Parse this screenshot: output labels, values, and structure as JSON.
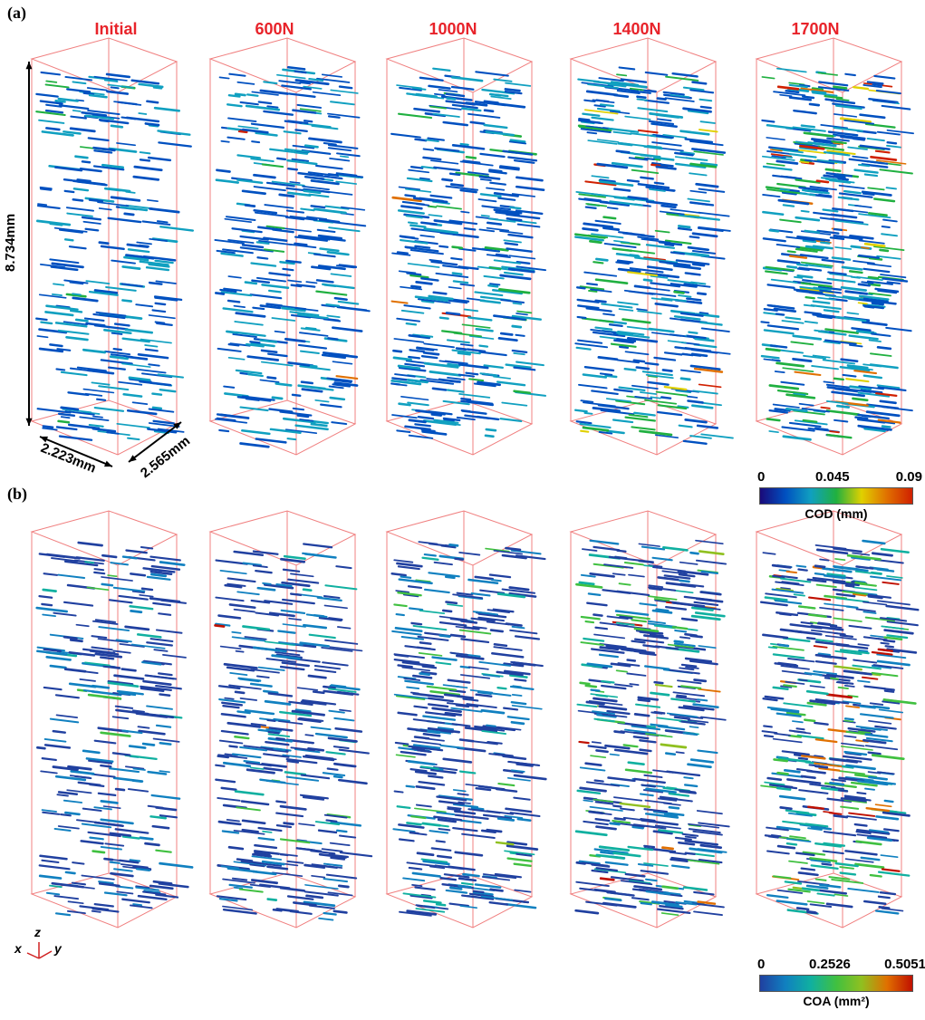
{
  "panels": [
    {
      "label": "(a)"
    },
    {
      "label": "(b)"
    }
  ],
  "stages": [
    "Initial",
    "600N",
    "1000N",
    "1400N",
    "1700N"
  ],
  "dimensions": {
    "height": "8.734mm",
    "width_x": "2.223mm",
    "width_y": "2.565mm"
  },
  "axes_triad": {
    "x": "x",
    "y": "y",
    "z": "z"
  },
  "colorbars": [
    {
      "title": "COD (mm)",
      "ticks": [
        "0",
        "0.045",
        "0.09"
      ],
      "colors": [
        "#1a0a7a",
        "#0050c0",
        "#10a0c0",
        "#20b040",
        "#e0d000",
        "#e07000",
        "#d02000"
      ]
    },
    {
      "title": "COA (mm²)",
      "ticks": [
        "0",
        "0.2526",
        "0.5051"
      ],
      "colors": [
        "#2040a0",
        "#1080c0",
        "#10b0a0",
        "#40c040",
        "#90c020",
        "#e07000",
        "#c01000"
      ]
    }
  ],
  "colors": {
    "stage_title": "#e8232a",
    "box_edge": "#f08080"
  }
}
